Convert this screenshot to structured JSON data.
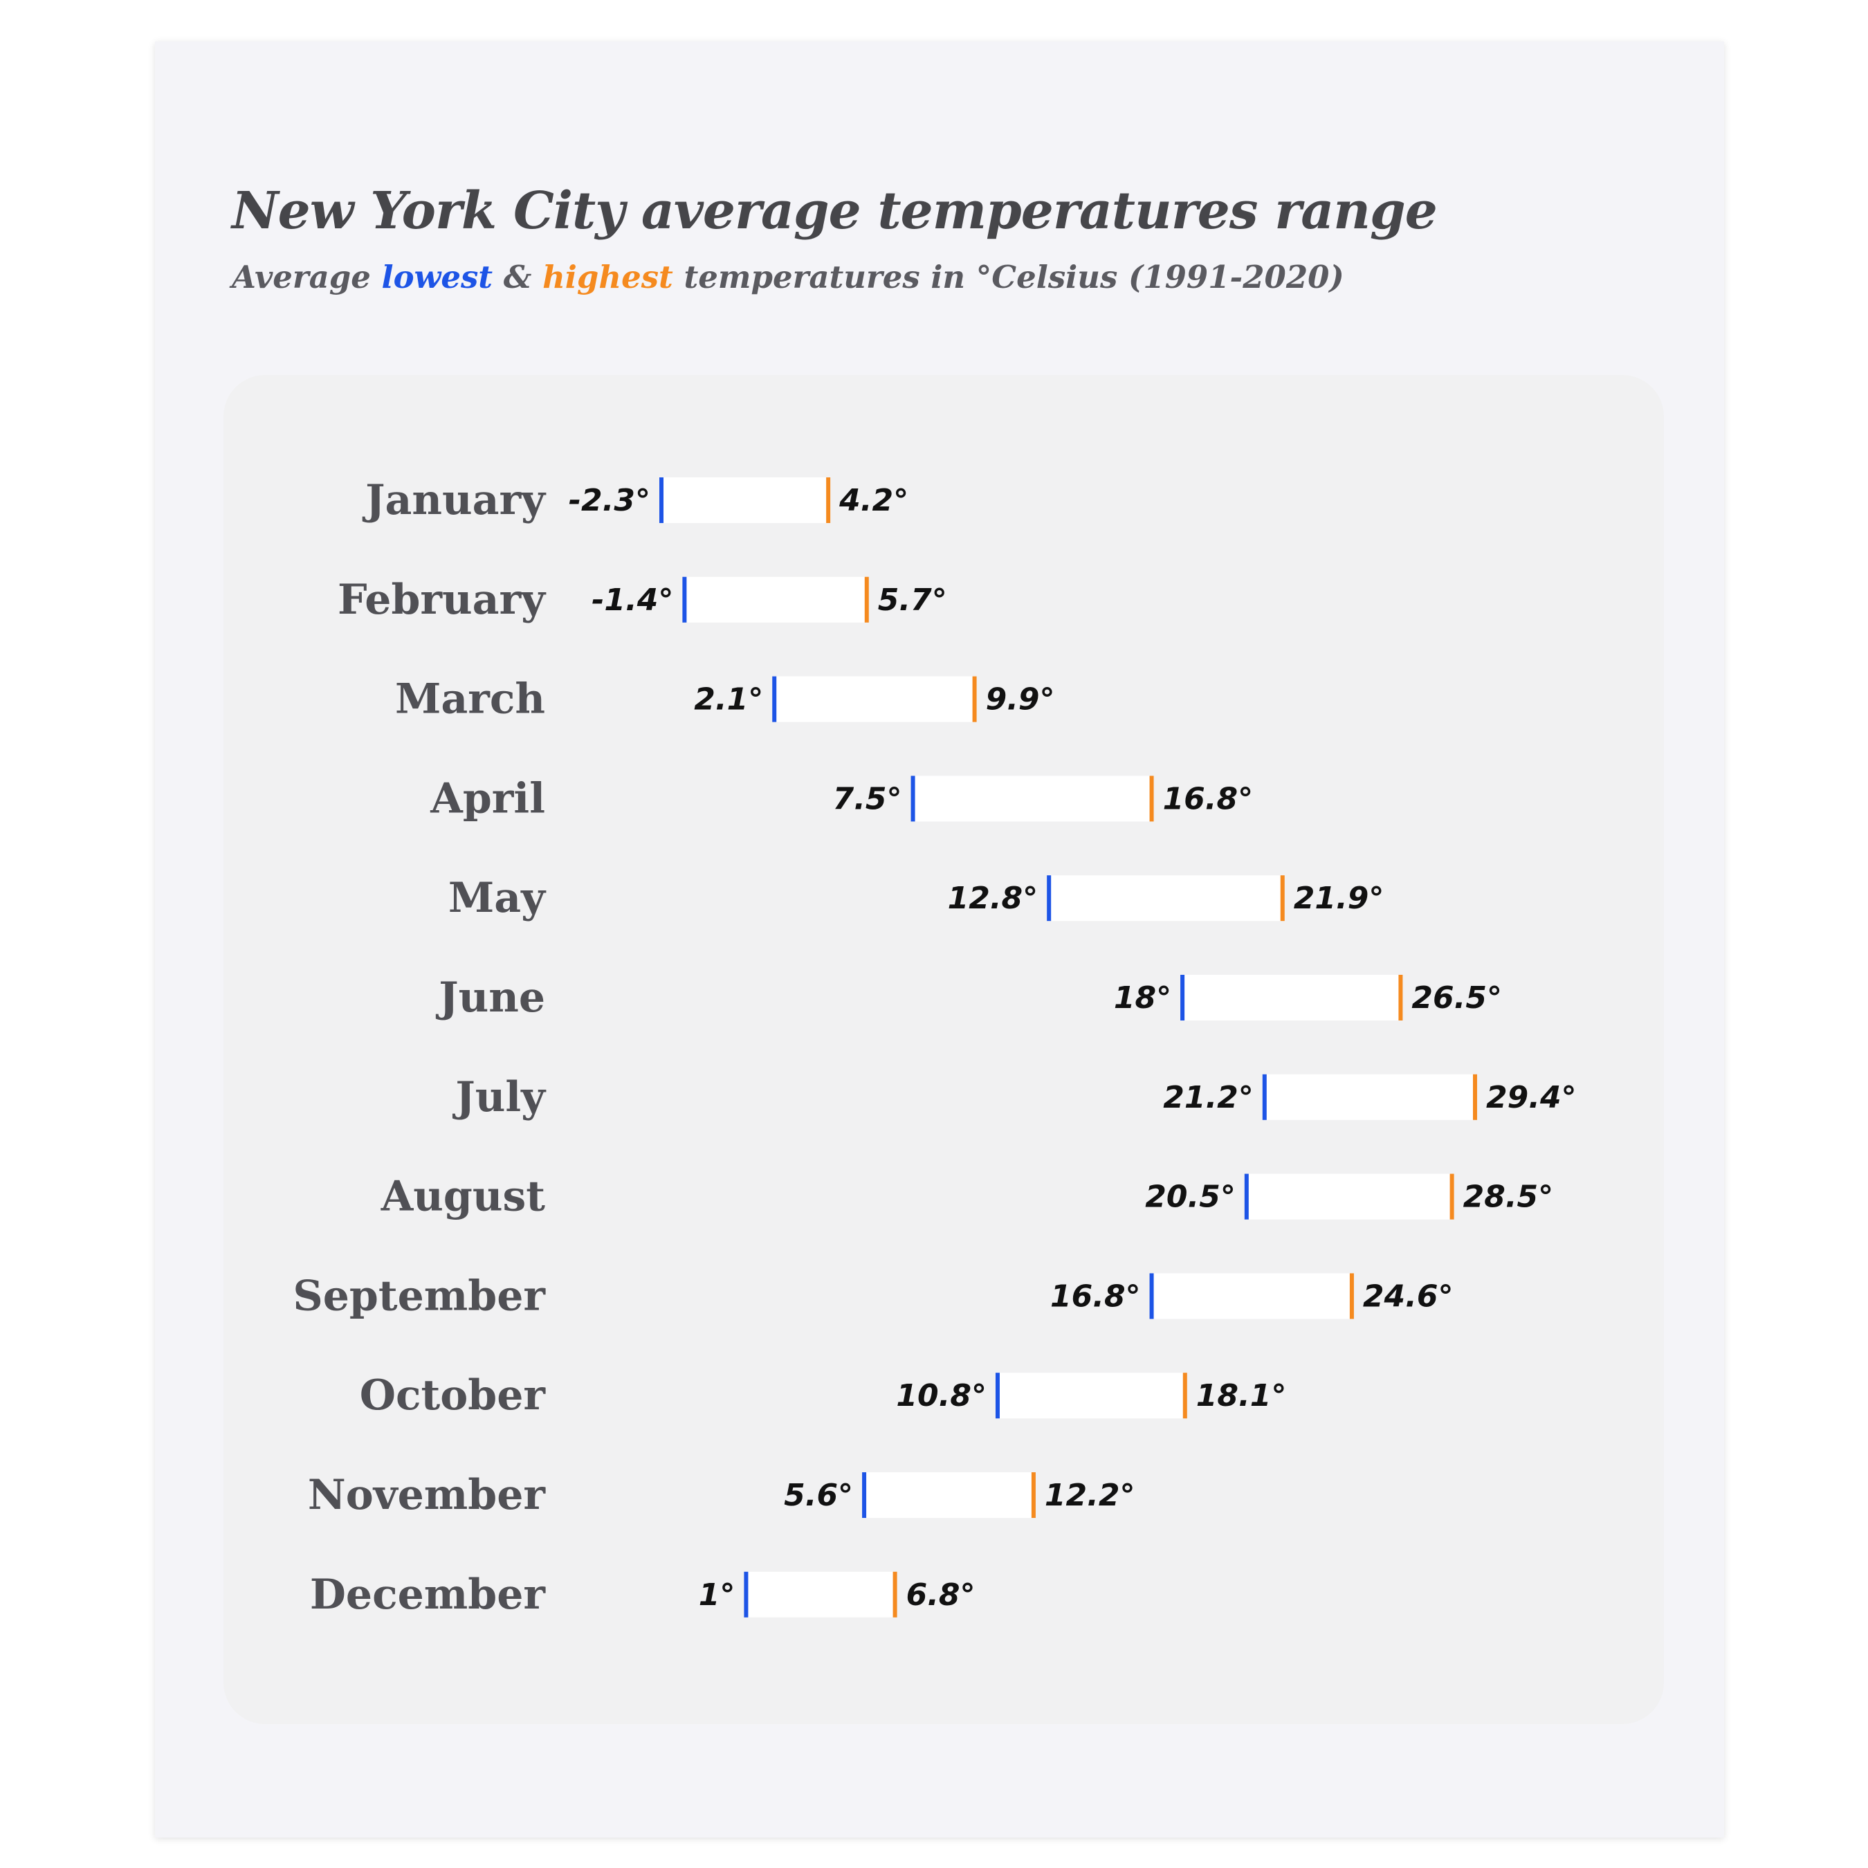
{
  "title": "New York City average temperatures range",
  "subtitle": {
    "prefix": "Average ",
    "low_word": "lowest",
    "middle": " & ",
    "high_word": "highest",
    "suffix": " temperatures in °Celsius (1991-2020)"
  },
  "colors": {
    "low": "#1d54e6",
    "high": "#f58a1f",
    "bar_fill": "#ffffff",
    "text": "#46464a"
  },
  "chart_data": {
    "type": "bar",
    "subtype": "range",
    "title": "New York City average temperatures range",
    "subtitle": "Average lowest & highest temperatures in °Celsius (1991-2020)",
    "unit_suffix": "°",
    "categories": [
      "January",
      "February",
      "March",
      "April",
      "May",
      "June",
      "July",
      "August",
      "September",
      "October",
      "November",
      "December"
    ],
    "series": [
      {
        "name": "lowest",
        "values": [
          -2.3,
          -1.4,
          2.1,
          7.5,
          12.8,
          18,
          21.2,
          20.5,
          16.8,
          10.8,
          5.6,
          1
        ]
      },
      {
        "name": "highest",
        "values": [
          4.2,
          5.7,
          9.9,
          16.8,
          21.9,
          26.5,
          29.4,
          28.5,
          24.6,
          18.1,
          12.2,
          6.8
        ]
      }
    ],
    "labels": {
      "low": [
        "-2.3°",
        "-1.4°",
        "2.1°",
        "7.5°",
        "12.8°",
        "18°",
        "21.2°",
        "20.5°",
        "16.8°",
        "10.8°",
        "5.6°",
        "1°"
      ],
      "high": [
        "4.2°",
        "5.7°",
        "9.9°",
        "16.8°",
        "21.9°",
        "26.5°",
        "29.4°",
        "28.5°",
        "24.6°",
        "18.1°",
        "12.2°",
        "6.8°"
      ]
    },
    "xlim": [
      -2.3,
      29.4
    ],
    "grid": false,
    "legend": "subtitle"
  }
}
